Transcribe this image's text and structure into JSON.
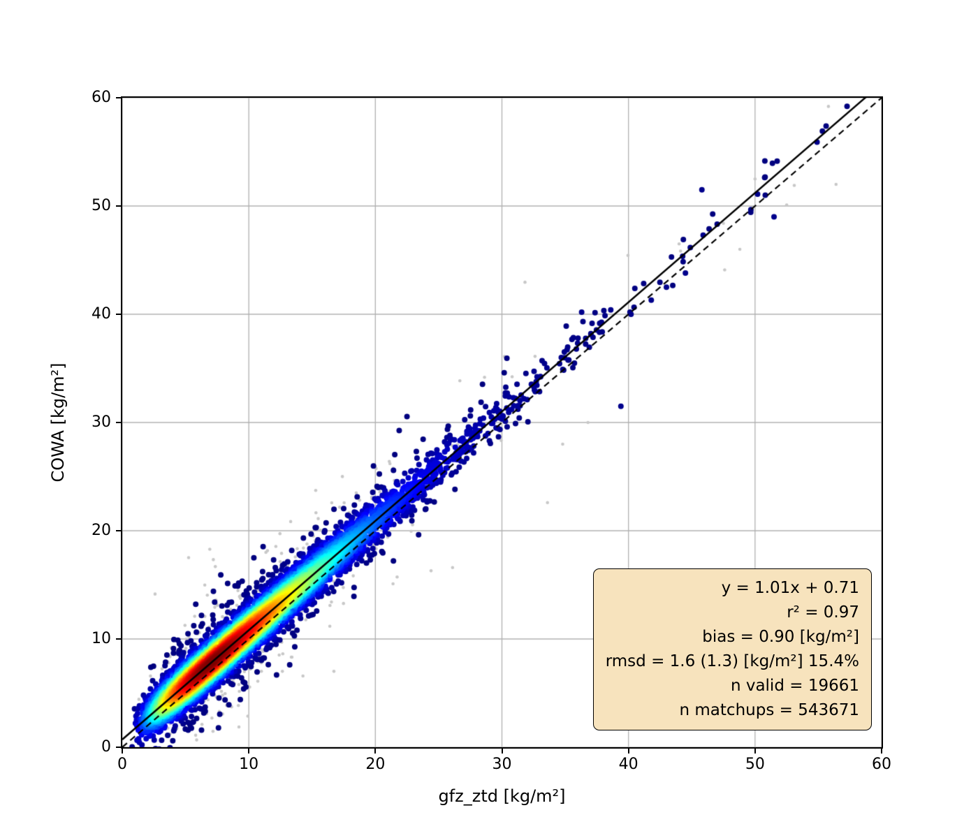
{
  "figure": {
    "background": "#ffffff"
  },
  "chart_data": {
    "type": "scatter",
    "title": "",
    "xlabel": "gfz_ztd [kg/m²]",
    "ylabel": "COWA [kg/m²]",
    "xlim": [
      0,
      60
    ],
    "ylim": [
      0,
      60
    ],
    "xticks": [
      "0",
      "10",
      "20",
      "30",
      "40",
      "50",
      "60"
    ],
    "yticks": [
      "0",
      "10",
      "20",
      "30",
      "40",
      "50",
      "60"
    ],
    "grid": true,
    "grid_color": "#b0b0b0",
    "axis_color": "#000000",
    "identity_line": {
      "slope": 1,
      "intercept": 0,
      "style": "dashed",
      "color": "#000000"
    },
    "fit_line": {
      "slope": 1.01,
      "intercept": 0.71,
      "style": "solid",
      "color": "#000000"
    },
    "density_cloud": {
      "colormap": "jet",
      "n_points": 7000,
      "seed": 1337,
      "x_offset": 0.5,
      "x_gamma_shape": 3,
      "x_gamma_scale": 3.3,
      "tail_frac": 0.07,
      "tail_offset": 4,
      "tail_mean": 11,
      "noise_sigma": 1.05,
      "outlier_frac": 0.1,
      "outlier_sigma": 2.4,
      "point_radius": 4
    },
    "background_cloud": {
      "color": "#c8c8c8",
      "n_points": 800,
      "seed": 777,
      "noise_sigma": 1.9,
      "outlier_frac": 0.22,
      "outlier_sigma": 4.2,
      "point_radius": 2.3
    },
    "extra_points": {
      "navy_color": "#00008c",
      "navy": [
        [
          45.8,
          51.5
        ],
        [
          51.5,
          49.0
        ],
        [
          54.9,
          55.9
        ],
        [
          50.2,
          51.1
        ],
        [
          45.9,
          47.3
        ],
        [
          39.4,
          31.5
        ],
        [
          44.5,
          43.8
        ],
        [
          41.8,
          41.3
        ],
        [
          36.3,
          40.2
        ],
        [
          40.2,
          40.0
        ],
        [
          43.0,
          42.5
        ],
        [
          38.6,
          40.4
        ]
      ],
      "gray": [
        [
          55.8,
          59.2
        ],
        [
          53.1,
          51.9
        ],
        [
          50.0,
          52.5
        ],
        [
          47.6,
          44.1
        ],
        [
          24.4,
          16.3
        ],
        [
          33.6,
          22.6
        ],
        [
          26.1,
          16.6
        ],
        [
          21.1,
          26.4
        ],
        [
          52.5,
          50.1
        ],
        [
          44.0,
          46.5
        ],
        [
          48.8,
          46.0
        ],
        [
          56.4,
          52.0
        ],
        [
          34.8,
          28.0
        ],
        [
          30.2,
          36.1
        ],
        [
          36.8,
          30.0
        ]
      ]
    },
    "stats_box": {
      "bg_color": "#f7e3bd",
      "border_color": "#000000",
      "lines": [
        "y = 1.01x + 0.71",
        "r² = 0.97",
        "bias = 0.90 [kg/m²]",
        "rmsd = 1.6 (1.3) [kg/m²] 15.4%",
        "n valid = 19661",
        "n matchups = 543671"
      ]
    }
  }
}
